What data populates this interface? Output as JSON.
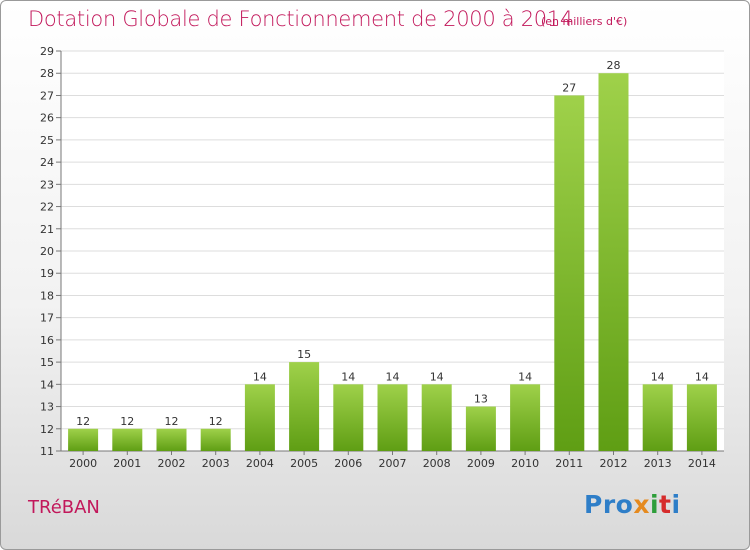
{
  "title": "Dotation Globale de Fonctionnement de 2000 à 2014",
  "subtitle": "(en milliers d'€)",
  "commune": "TRéBAN",
  "logo": {
    "text": "Proxiti",
    "parts": [
      "Pro",
      "x",
      "i",
      "t",
      "i"
    ]
  },
  "colors": {
    "title": "#c2185b",
    "bar_top": "#9fd14a",
    "bar_bottom": "#5f9e14"
  },
  "chart_data": {
    "type": "bar",
    "categories": [
      "2000",
      "2001",
      "2002",
      "2003",
      "2004",
      "2005",
      "2006",
      "2007",
      "2008",
      "2009",
      "2010",
      "2011",
      "2012",
      "2013",
      "2014"
    ],
    "values": [
      12,
      12,
      12,
      12,
      14,
      15,
      14,
      14,
      14,
      13,
      14,
      27,
      28,
      14,
      14
    ],
    "ylim": [
      11,
      29
    ],
    "yticks": [
      11,
      12,
      13,
      14,
      15,
      16,
      17,
      18,
      19,
      20,
      21,
      22,
      23,
      24,
      25,
      26,
      27,
      28,
      29
    ],
    "grid": true,
    "title": "Dotation Globale de Fonctionnement de 2000 à 2014",
    "ylabel": "(en milliers d'€)",
    "xlabel": ""
  }
}
